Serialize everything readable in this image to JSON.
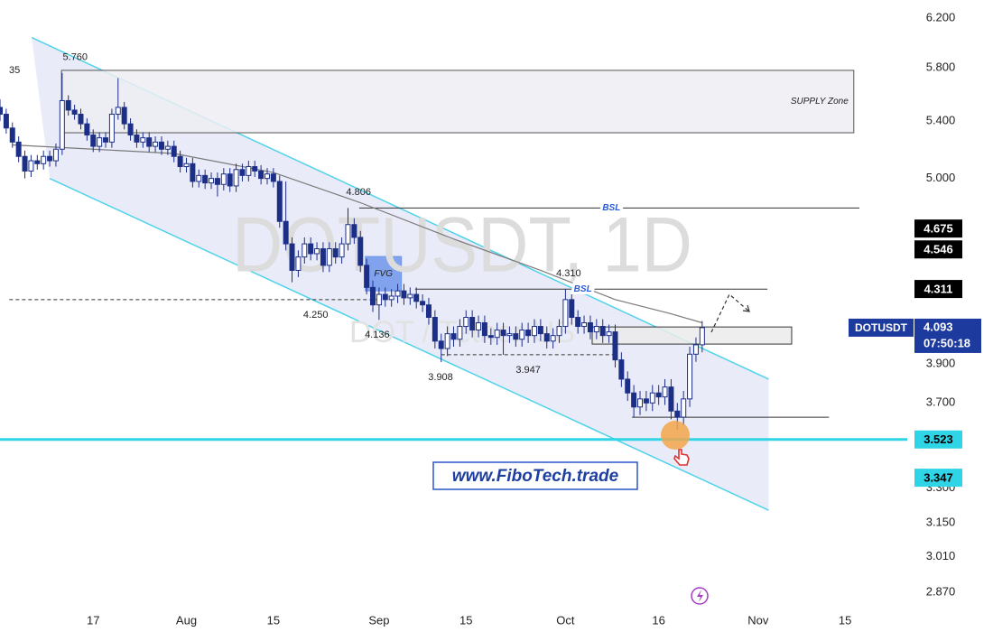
{
  "chart_data": {
    "type": "candlestick",
    "watermark": "DOTUSDT, 1D",
    "watermark_subtitle": "DOT / Tether US",
    "brand": "www.FiboTech.trade",
    "edge_label": "35",
    "log_scale": true,
    "xlim": [
      1,
      147
    ],
    "ylim": [
      2.822,
      6.352
    ],
    "up_color": "#ffffff",
    "down_color": "#1c2f87",
    "x": [
      1,
      2,
      3,
      4,
      5,
      6,
      7,
      8,
      9,
      10,
      11,
      12,
      13,
      14,
      15,
      16,
      17,
      18,
      19,
      20,
      21,
      22,
      23,
      24,
      25,
      26,
      27,
      28,
      29,
      30,
      31,
      32,
      33,
      34,
      35,
      36,
      37,
      38,
      39,
      40,
      41,
      42,
      43,
      44,
      45,
      46,
      47,
      48,
      49,
      50,
      51,
      52,
      53,
      54,
      55,
      56,
      57,
      58,
      59,
      60,
      61,
      62,
      63,
      64,
      65,
      66,
      67,
      68,
      69,
      70,
      71,
      72,
      73,
      74,
      75,
      76,
      77,
      78,
      79,
      80,
      81,
      82,
      83,
      84,
      85,
      86,
      87,
      88,
      89,
      90,
      91,
      92,
      93,
      94,
      95,
      96,
      97,
      98,
      99,
      100,
      101,
      102,
      103,
      104,
      105,
      106,
      107,
      108,
      109,
      110,
      111,
      112,
      113,
      114
    ],
    "open": [
      5.5,
      5.45,
      5.35,
      5.25,
      5.15,
      5.05,
      5.12,
      5.1,
      5.15,
      5.12,
      5.2,
      5.55,
      5.48,
      5.45,
      5.38,
      5.3,
      5.22,
      5.28,
      5.25,
      5.45,
      5.5,
      5.38,
      5.3,
      5.25,
      5.28,
      5.22,
      5.25,
      5.2,
      5.22,
      5.15,
      5.08,
      5.1,
      4.98,
      5.02,
      4.97,
      5.0,
      4.96,
      5.03,
      4.95,
      5.06,
      5.02,
      5.08,
      5.05,
      5.0,
      5.03,
      4.98,
      4.72,
      4.58,
      4.42,
      4.5,
      4.58,
      4.52,
      4.55,
      4.45,
      4.55,
      4.5,
      4.58,
      4.7,
      4.62,
      4.45,
      4.32,
      4.22,
      4.28,
      4.25,
      4.27,
      4.3,
      4.26,
      4.28,
      4.24,
      4.22,
      4.15,
      4.02,
      3.98,
      4.06,
      4.03,
      4.1,
      4.15,
      4.08,
      4.12,
      4.05,
      4.04,
      4.08,
      4.05,
      4.06,
      4.03,
      4.08,
      4.05,
      4.1,
      4.06,
      4.02,
      4.05,
      4.1,
      4.25,
      4.15,
      4.1,
      4.12,
      4.07,
      4.1,
      4.05,
      4.07,
      3.92,
      3.82,
      3.75,
      3.68,
      3.72,
      3.7,
      3.75,
      3.73,
      3.78,
      3.66,
      3.63,
      3.72,
      3.95,
      4.0
    ],
    "high": [
      5.56,
      5.49,
      5.39,
      5.29,
      5.19,
      5.16,
      5.16,
      5.19,
      5.19,
      5.24,
      5.76,
      5.59,
      5.52,
      5.49,
      5.42,
      5.34,
      5.32,
      5.32,
      5.49,
      5.72,
      5.54,
      5.42,
      5.34,
      5.32,
      5.32,
      5.29,
      5.29,
      5.26,
      5.26,
      5.19,
      5.14,
      5.14,
      5.06,
      5.06,
      5.04,
      5.04,
      5.07,
      5.07,
      5.1,
      5.1,
      5.12,
      5.12,
      5.09,
      5.07,
      5.07,
      5.02,
      4.98,
      4.62,
      4.54,
      4.62,
      4.62,
      4.59,
      4.59,
      4.59,
      4.59,
      4.62,
      4.806,
      4.74,
      4.66,
      4.49,
      4.36,
      4.32,
      4.32,
      4.31,
      4.34,
      4.34,
      4.32,
      4.32,
      4.28,
      4.26,
      4.19,
      4.06,
      4.1,
      4.1,
      4.14,
      4.19,
      4.19,
      4.16,
      4.16,
      4.09,
      4.12,
      4.12,
      4.1,
      4.1,
      4.12,
      4.12,
      4.14,
      4.14,
      4.1,
      4.09,
      4.14,
      4.31,
      4.29,
      4.19,
      4.16,
      4.16,
      4.14,
      4.14,
      4.11,
      4.11,
      3.96,
      3.86,
      3.79,
      3.76,
      3.76,
      3.79,
      3.79,
      3.82,
      3.82,
      3.7,
      3.76,
      3.99,
      4.04,
      4.13
    ],
    "low": [
      5.4,
      5.31,
      5.21,
      5.11,
      5.0,
      5.01,
      5.06,
      5.06,
      5.08,
      5.08,
      5.16,
      5.44,
      5.41,
      5.34,
      5.26,
      5.18,
      5.18,
      5.21,
      5.21,
      5.41,
      5.34,
      5.26,
      5.21,
      5.21,
      5.18,
      5.18,
      5.16,
      5.16,
      5.11,
      5.04,
      5.04,
      4.94,
      4.94,
      4.93,
      4.93,
      4.88,
      4.92,
      4.91,
      4.91,
      4.98,
      4.98,
      5.01,
      4.96,
      4.96,
      4.94,
      4.68,
      4.54,
      4.35,
      4.38,
      4.46,
      4.48,
      4.48,
      4.41,
      4.41,
      4.46,
      4.46,
      4.54,
      4.58,
      4.41,
      4.28,
      4.18,
      4.136,
      4.21,
      4.21,
      4.23,
      4.22,
      4.22,
      4.2,
      4.18,
      4.11,
      3.98,
      3.908,
      3.94,
      3.99,
      3.99,
      4.06,
      4.04,
      4.04,
      4.01,
      4.0,
      4.0,
      3.947,
      4.01,
      3.99,
      3.99,
      4.01,
      4.01,
      4.02,
      3.98,
      3.98,
      4.01,
      4.06,
      4.11,
      4.06,
      4.06,
      4.03,
      4.03,
      4.01,
      4.01,
      3.88,
      3.78,
      3.71,
      3.63,
      3.64,
      3.66,
      3.66,
      3.69,
      3.69,
      3.62,
      3.57,
      3.59,
      3.68,
      3.91,
      3.96
    ],
    "close": [
      5.45,
      5.35,
      5.25,
      5.15,
      5.05,
      5.12,
      5.1,
      5.15,
      5.12,
      5.2,
      5.55,
      5.48,
      5.45,
      5.38,
      5.3,
      5.22,
      5.28,
      5.25,
      5.45,
      5.5,
      5.38,
      5.3,
      5.25,
      5.28,
      5.22,
      5.25,
      5.2,
      5.22,
      5.15,
      5.08,
      5.1,
      4.98,
      5.02,
      4.97,
      5.0,
      4.96,
      5.03,
      4.95,
      5.06,
      5.02,
      5.08,
      5.05,
      5.0,
      5.03,
      4.98,
      4.72,
      4.58,
      4.42,
      4.5,
      4.58,
      4.52,
      4.55,
      4.45,
      4.55,
      4.5,
      4.58,
      4.7,
      4.62,
      4.45,
      4.32,
      4.22,
      4.28,
      4.25,
      4.27,
      4.3,
      4.26,
      4.28,
      4.24,
      4.22,
      4.15,
      4.02,
      3.98,
      4.06,
      4.03,
      4.1,
      4.15,
      4.08,
      4.12,
      4.05,
      4.04,
      4.08,
      4.05,
      4.06,
      4.03,
      4.08,
      4.05,
      4.1,
      4.06,
      4.02,
      4.05,
      4.1,
      4.25,
      4.15,
      4.1,
      4.12,
      4.07,
      4.1,
      4.05,
      4.07,
      3.92,
      3.82,
      3.75,
      3.68,
      3.72,
      3.7,
      3.75,
      3.73,
      3.78,
      3.66,
      3.63,
      3.72,
      3.95,
      4.0,
      4.093
    ],
    "moving_average": {
      "color": "#7a7a7a",
      "x": [
        3,
        16,
        29,
        45,
        59,
        74,
        88,
        100,
        109,
        114
      ],
      "values": [
        5.23,
        5.2,
        5.17,
        5.04,
        4.84,
        4.61,
        4.42,
        4.25,
        4.17,
        4.12
      ]
    },
    "channel": {
      "color": "#4fd3ea",
      "fill": "#e6e8f8",
      "upper": {
        "x": [
          6.1,
          124.7
        ],
        "values": [
          6.04,
          3.82
        ]
      },
      "lower": {
        "x": [
          9,
          124.7
        ],
        "values": [
          5.0,
          3.204
        ]
      }
    },
    "zones": [
      {
        "label": "SUPPLY Zone",
        "x": [
          10.9,
          138.4
        ],
        "y": [
          5.316,
          5.78
        ],
        "color": "#ededf3",
        "stroke": "#555555"
      },
      {
        "label": "FVG",
        "x": [
          59.8,
          65.6
        ],
        "y": [
          4.3,
          4.503
        ],
        "color": "#6f95ea",
        "stroke": "#6f95ea"
      },
      {
        "x": [
          96.3,
          128.4
        ],
        "y": [
          4.004,
          4.097
        ],
        "color": "#ebebeb",
        "stroke": "#333333"
      }
    ],
    "levels": [
      {
        "label": "BSL",
        "label_x": 99.4,
        "value": 4.806,
        "x": [
          58.8,
          139.3
        ],
        "color": "#333333"
      },
      {
        "label": "BSL",
        "label_x": 94.8,
        "value": 4.31,
        "x": [
          67.8,
          124.5
        ],
        "color": "#333333"
      },
      {
        "value": 3.63,
        "x": [
          102.7,
          134.4
        ],
        "color": "#333333"
      },
      {
        "value": 4.25,
        "x": [
          2.5,
          62
        ],
        "color": "#333333",
        "dashed": true
      },
      {
        "value": 3.947,
        "x": [
          72,
          100
        ],
        "color": "#333333",
        "dashed": true
      },
      {
        "value": 3.523,
        "x": [
          1,
          147
        ],
        "color": "#2fd5e6",
        "width": 3
      }
    ],
    "point_labels": [
      {
        "label": "5.760",
        "value": 5.76,
        "x": 13.1,
        "position": "above"
      },
      {
        "label": "4.806",
        "value": 4.806,
        "x": 58.7,
        "position": "above"
      },
      {
        "label": "4.310",
        "value": 4.31,
        "x": 92.5,
        "position": "above"
      },
      {
        "label": "4.250",
        "value": 4.25,
        "x": 51.8,
        "position": "below"
      },
      {
        "label": "4.136",
        "value": 4.136,
        "x": 61.7,
        "position": "below"
      },
      {
        "label": "3.908",
        "value": 3.908,
        "x": 71.9,
        "position": "below"
      },
      {
        "label": "3.947",
        "value": 3.947,
        "x": 86.0,
        "position": "below"
      }
    ],
    "xticks": [
      {
        "value": 16,
        "label": "17"
      },
      {
        "value": 31,
        "label": "Aug"
      },
      {
        "value": 45,
        "label": "15"
      },
      {
        "value": 62,
        "label": "Sep"
      },
      {
        "value": 76,
        "label": "15"
      },
      {
        "value": 92,
        "label": "Oct"
      },
      {
        "value": 107,
        "label": "16"
      },
      {
        "value": 123,
        "label": "Nov"
      },
      {
        "value": 137,
        "label": "15"
      }
    ],
    "yticks": [
      {
        "value": 6.2,
        "label": "6.200"
      },
      {
        "value": 5.8,
        "label": "5.800"
      },
      {
        "value": 5.4,
        "label": "5.400"
      },
      {
        "value": 5.0,
        "label": "5.000"
      },
      {
        "value": 3.9,
        "label": "3.900"
      },
      {
        "value": 3.7,
        "label": "3.700"
      },
      {
        "value": 3.3,
        "label": "3.300"
      },
      {
        "value": 3.15,
        "label": "3.150"
      },
      {
        "value": 3.01,
        "label": "3.010"
      },
      {
        "value": 2.87,
        "label": "2.870"
      }
    ],
    "price_badges": [
      {
        "label": "4.675",
        "value": 4.675,
        "color": "#000000",
        "text_color": "#ffffff"
      },
      {
        "label": "4.546",
        "value": 4.546,
        "color": "#000000",
        "text_color": "#ffffff"
      },
      {
        "label": "4.311",
        "value": 4.311,
        "color": "#000000",
        "text_color": "#ffffff"
      },
      {
        "label": "3.523",
        "value": 3.523,
        "color": "#2fd5e6",
        "text_color": "#000000"
      },
      {
        "label": "3.347",
        "value": 3.347,
        "color": "#2fd5e6",
        "text_color": "#000000"
      }
    ],
    "last_price": {
      "name": "DOTUSDT",
      "label": "4.093",
      "value": 4.093,
      "countdown": "07:50:18",
      "color": "#1d3a9e"
    }
  }
}
